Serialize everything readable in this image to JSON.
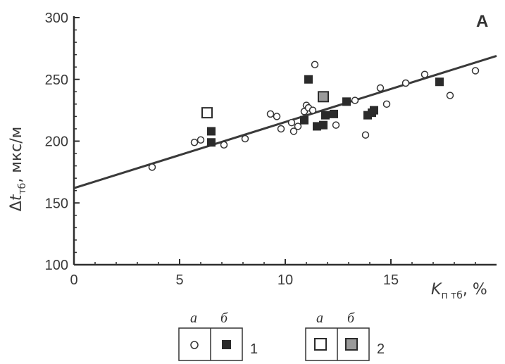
{
  "chart_data": {
    "type": "scatter",
    "panel_label": "А",
    "title": "",
    "xlabel": "Kп тб, %",
    "ylabel": "Δtтб, мкс/м",
    "xlim": [
      0,
      20
    ],
    "ylim": [
      100,
      300
    ],
    "xticks": [
      "0",
      "5",
      "10",
      "15"
    ],
    "yticks": [
      "100",
      "150",
      "200",
      "250",
      "300"
    ],
    "grid": false,
    "series": [
      {
        "marker": "open-circle",
        "points": [
          [
            3.7,
            179
          ],
          [
            5.7,
            199
          ],
          [
            6.0,
            201
          ],
          [
            7.1,
            197
          ],
          [
            8.1,
            202
          ],
          [
            9.3,
            222
          ],
          [
            9.6,
            220
          ],
          [
            9.8,
            210
          ],
          [
            10.3,
            215
          ],
          [
            10.4,
            208
          ],
          [
            10.6,
            212
          ],
          [
            10.9,
            224
          ],
          [
            11.0,
            229
          ],
          [
            11.1,
            227
          ],
          [
            11.3,
            225
          ],
          [
            11.4,
            262
          ],
          [
            12.4,
            213
          ],
          [
            13.3,
            233
          ],
          [
            13.8,
            205
          ],
          [
            14.5,
            243
          ],
          [
            14.8,
            230
          ],
          [
            15.7,
            247
          ],
          [
            16.6,
            254
          ],
          [
            17.8,
            237
          ],
          [
            19.0,
            257
          ]
        ]
      },
      {
        "marker": "filled-square",
        "points": [
          [
            6.5,
            199
          ],
          [
            6.5,
            208
          ],
          [
            10.9,
            217
          ],
          [
            11.1,
            250
          ],
          [
            11.5,
            212
          ],
          [
            11.8,
            213
          ],
          [
            11.9,
            221
          ],
          [
            12.3,
            222
          ],
          [
            12.9,
            232
          ],
          [
            13.9,
            221
          ],
          [
            14.1,
            223
          ],
          [
            14.2,
            225
          ],
          [
            17.3,
            248
          ]
        ]
      },
      {
        "marker": "open-square",
        "points": [
          [
            6.3,
            223
          ]
        ]
      },
      {
        "marker": "gray-square",
        "points": [
          [
            11.8,
            236
          ]
        ]
      }
    ],
    "trend_line": {
      "x": [
        0,
        20
      ],
      "y": [
        162,
        269
      ]
    }
  },
  "legend": {
    "group1": {
      "letter_a": "а",
      "letter_b": "б",
      "number": "1"
    },
    "group2": {
      "letter_a": "а",
      "letter_b": "б",
      "number": "2"
    }
  },
  "colors": {
    "axis": "#2e2e2e",
    "marker_fill_dark": "#2b2b2b",
    "marker_fill_gray": "#9a9a9a",
    "trend": "#3a3a3a"
  }
}
